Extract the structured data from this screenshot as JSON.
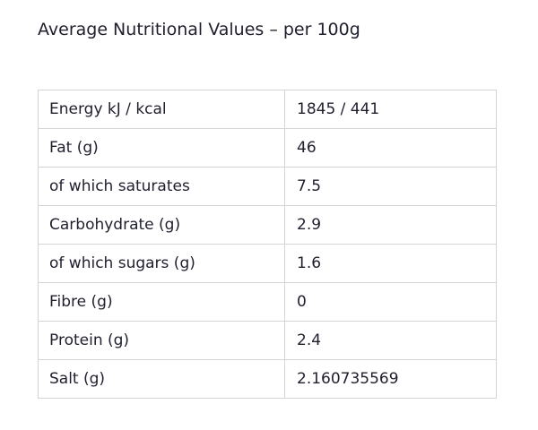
{
  "heading": "Average Nutritional Values – per 100g",
  "table": {
    "rows": [
      {
        "label": "Energy kJ / kcal",
        "value": "1845 / 441"
      },
      {
        "label": "Fat (g)",
        "value": "46"
      },
      {
        "label": "of which saturates",
        "value": "7.5"
      },
      {
        "label": "Carbohydrate (g)",
        "value": "2.9"
      },
      {
        "label": "of which sugars (g)",
        "value": "1.6"
      },
      {
        "label": "Fibre (g)",
        "value": "0"
      },
      {
        "label": "Protein (g)",
        "value": "2.4"
      },
      {
        "label": "Salt (g)",
        "value": "2.160735569"
      }
    ]
  }
}
